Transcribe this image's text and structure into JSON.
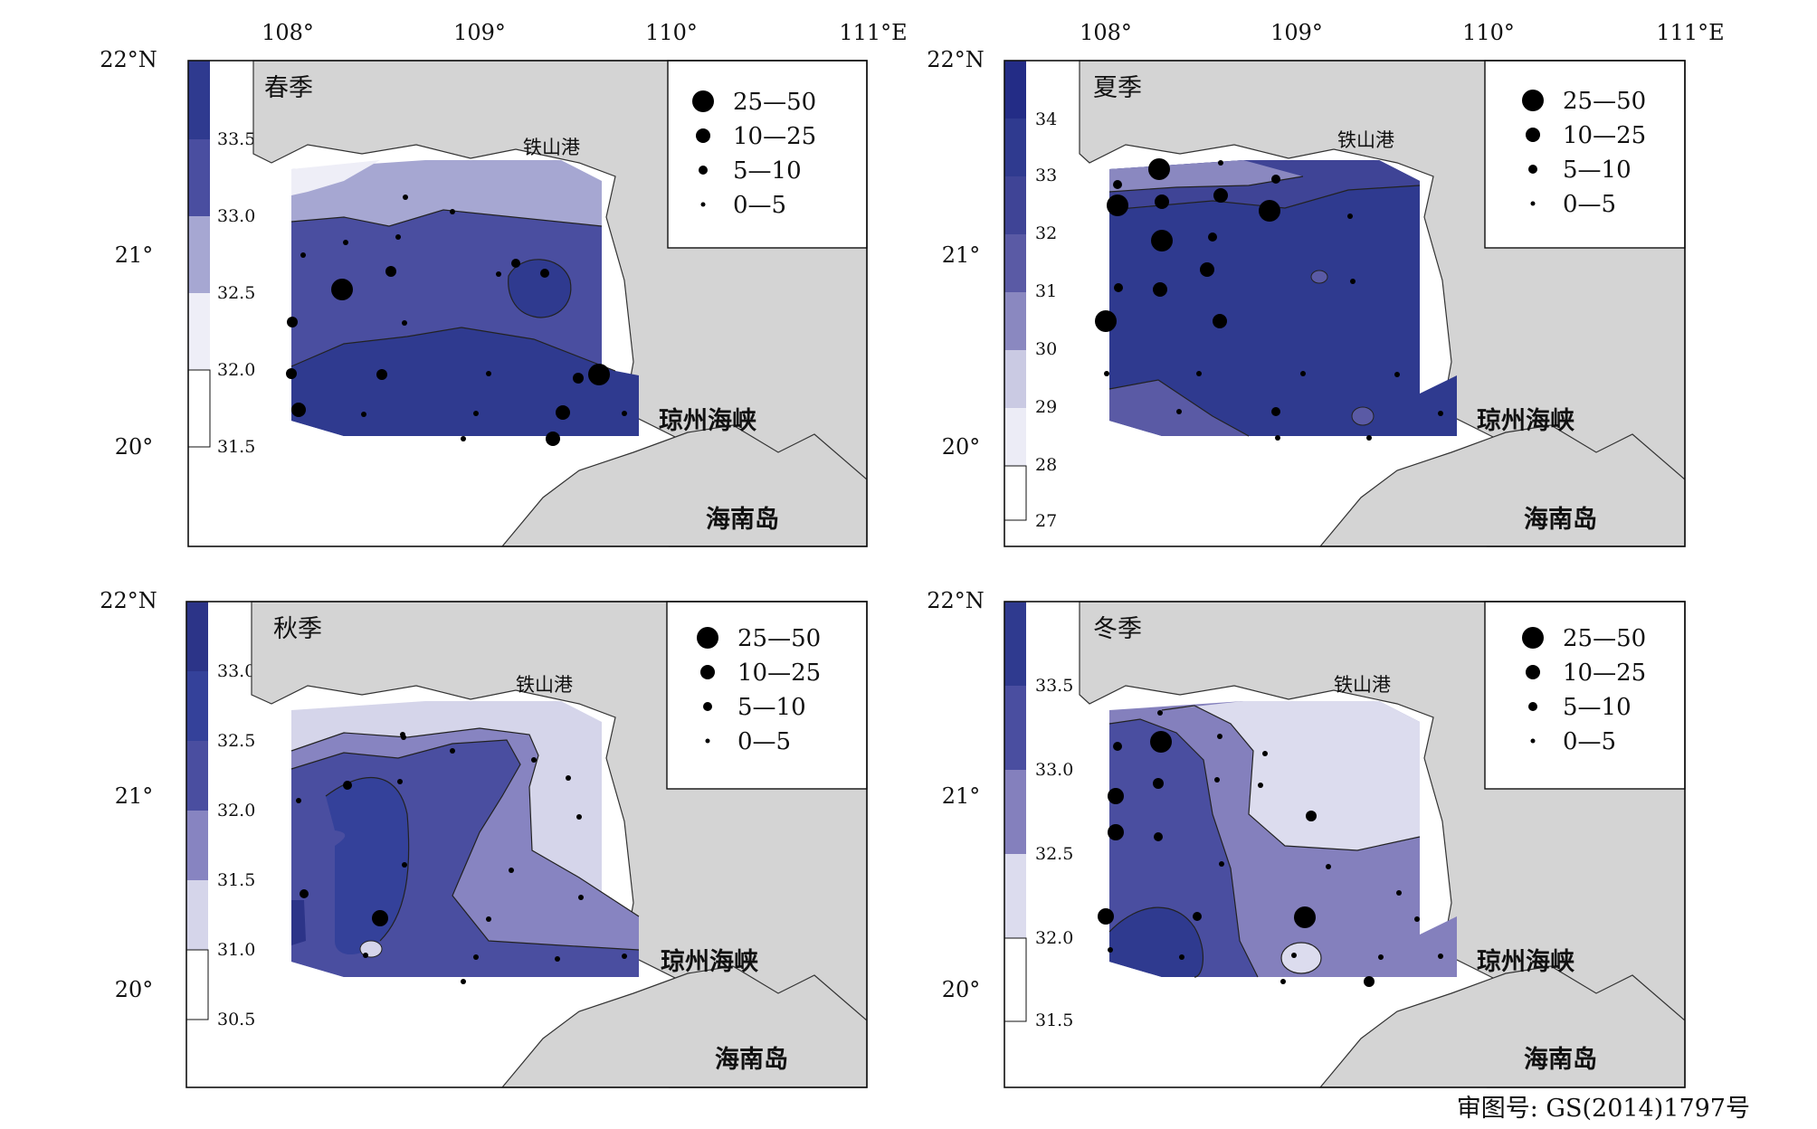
{
  "lon_labels": [
    "108°",
    "109°",
    "110°",
    "111°E"
  ],
  "lat_labels": [
    "22°N",
    "21°",
    "20°"
  ],
  "place_labels": {
    "tieshan": "铁山港",
    "qiongzhou": "琼州海峡",
    "hainan": "海南岛"
  },
  "legend": [
    {
      "label": "25—50",
      "r": 12
    },
    {
      "label": "10—25",
      "r": 8
    },
    {
      "label": "5—10",
      "r": 5
    },
    {
      "label": "0—5",
      "r": 2.5
    }
  ],
  "panels": [
    {
      "season": "春季",
      "scale": [
        "33.5",
        "33.0",
        "32.5",
        "32.0",
        "31.5"
      ],
      "colors": [
        "#2f3a8f",
        "#4a4ea0",
        "#a6a7d2",
        "#eeeef7",
        "#ffffff"
      ]
    },
    {
      "season": "夏季",
      "scale": [
        "34",
        "33",
        "32",
        "31",
        "30",
        "29",
        "28",
        "27"
      ],
      "colors": [
        "#232c86",
        "#2f3a8f",
        "#3f4496",
        "#5a5aa5",
        "#8a88c0",
        "#cacae3",
        "#ececf6",
        "#ffffff"
      ]
    },
    {
      "season": "秋季",
      "scale": [
        "33.0",
        "32.5",
        "32.0",
        "31.5",
        "31.0",
        "30.5"
      ],
      "colors": [
        "#2c3488",
        "#34419a",
        "#4a4ea0",
        "#8784c1",
        "#d5d5ea",
        "#ffffff"
      ]
    },
    {
      "season": "冬季",
      "scale": [
        "33.5",
        "33.0",
        "32.5",
        "32.0",
        "31.5"
      ],
      "colors": [
        "#2f3a8f",
        "#4a4ea0",
        "#8480bd",
        "#dcdcee",
        "#ffffff"
      ]
    }
  ],
  "approval_number": "审图号: GS(2014)1797号",
  "colors": {
    "land": "#d4d4d4",
    "frame": "#111111"
  }
}
